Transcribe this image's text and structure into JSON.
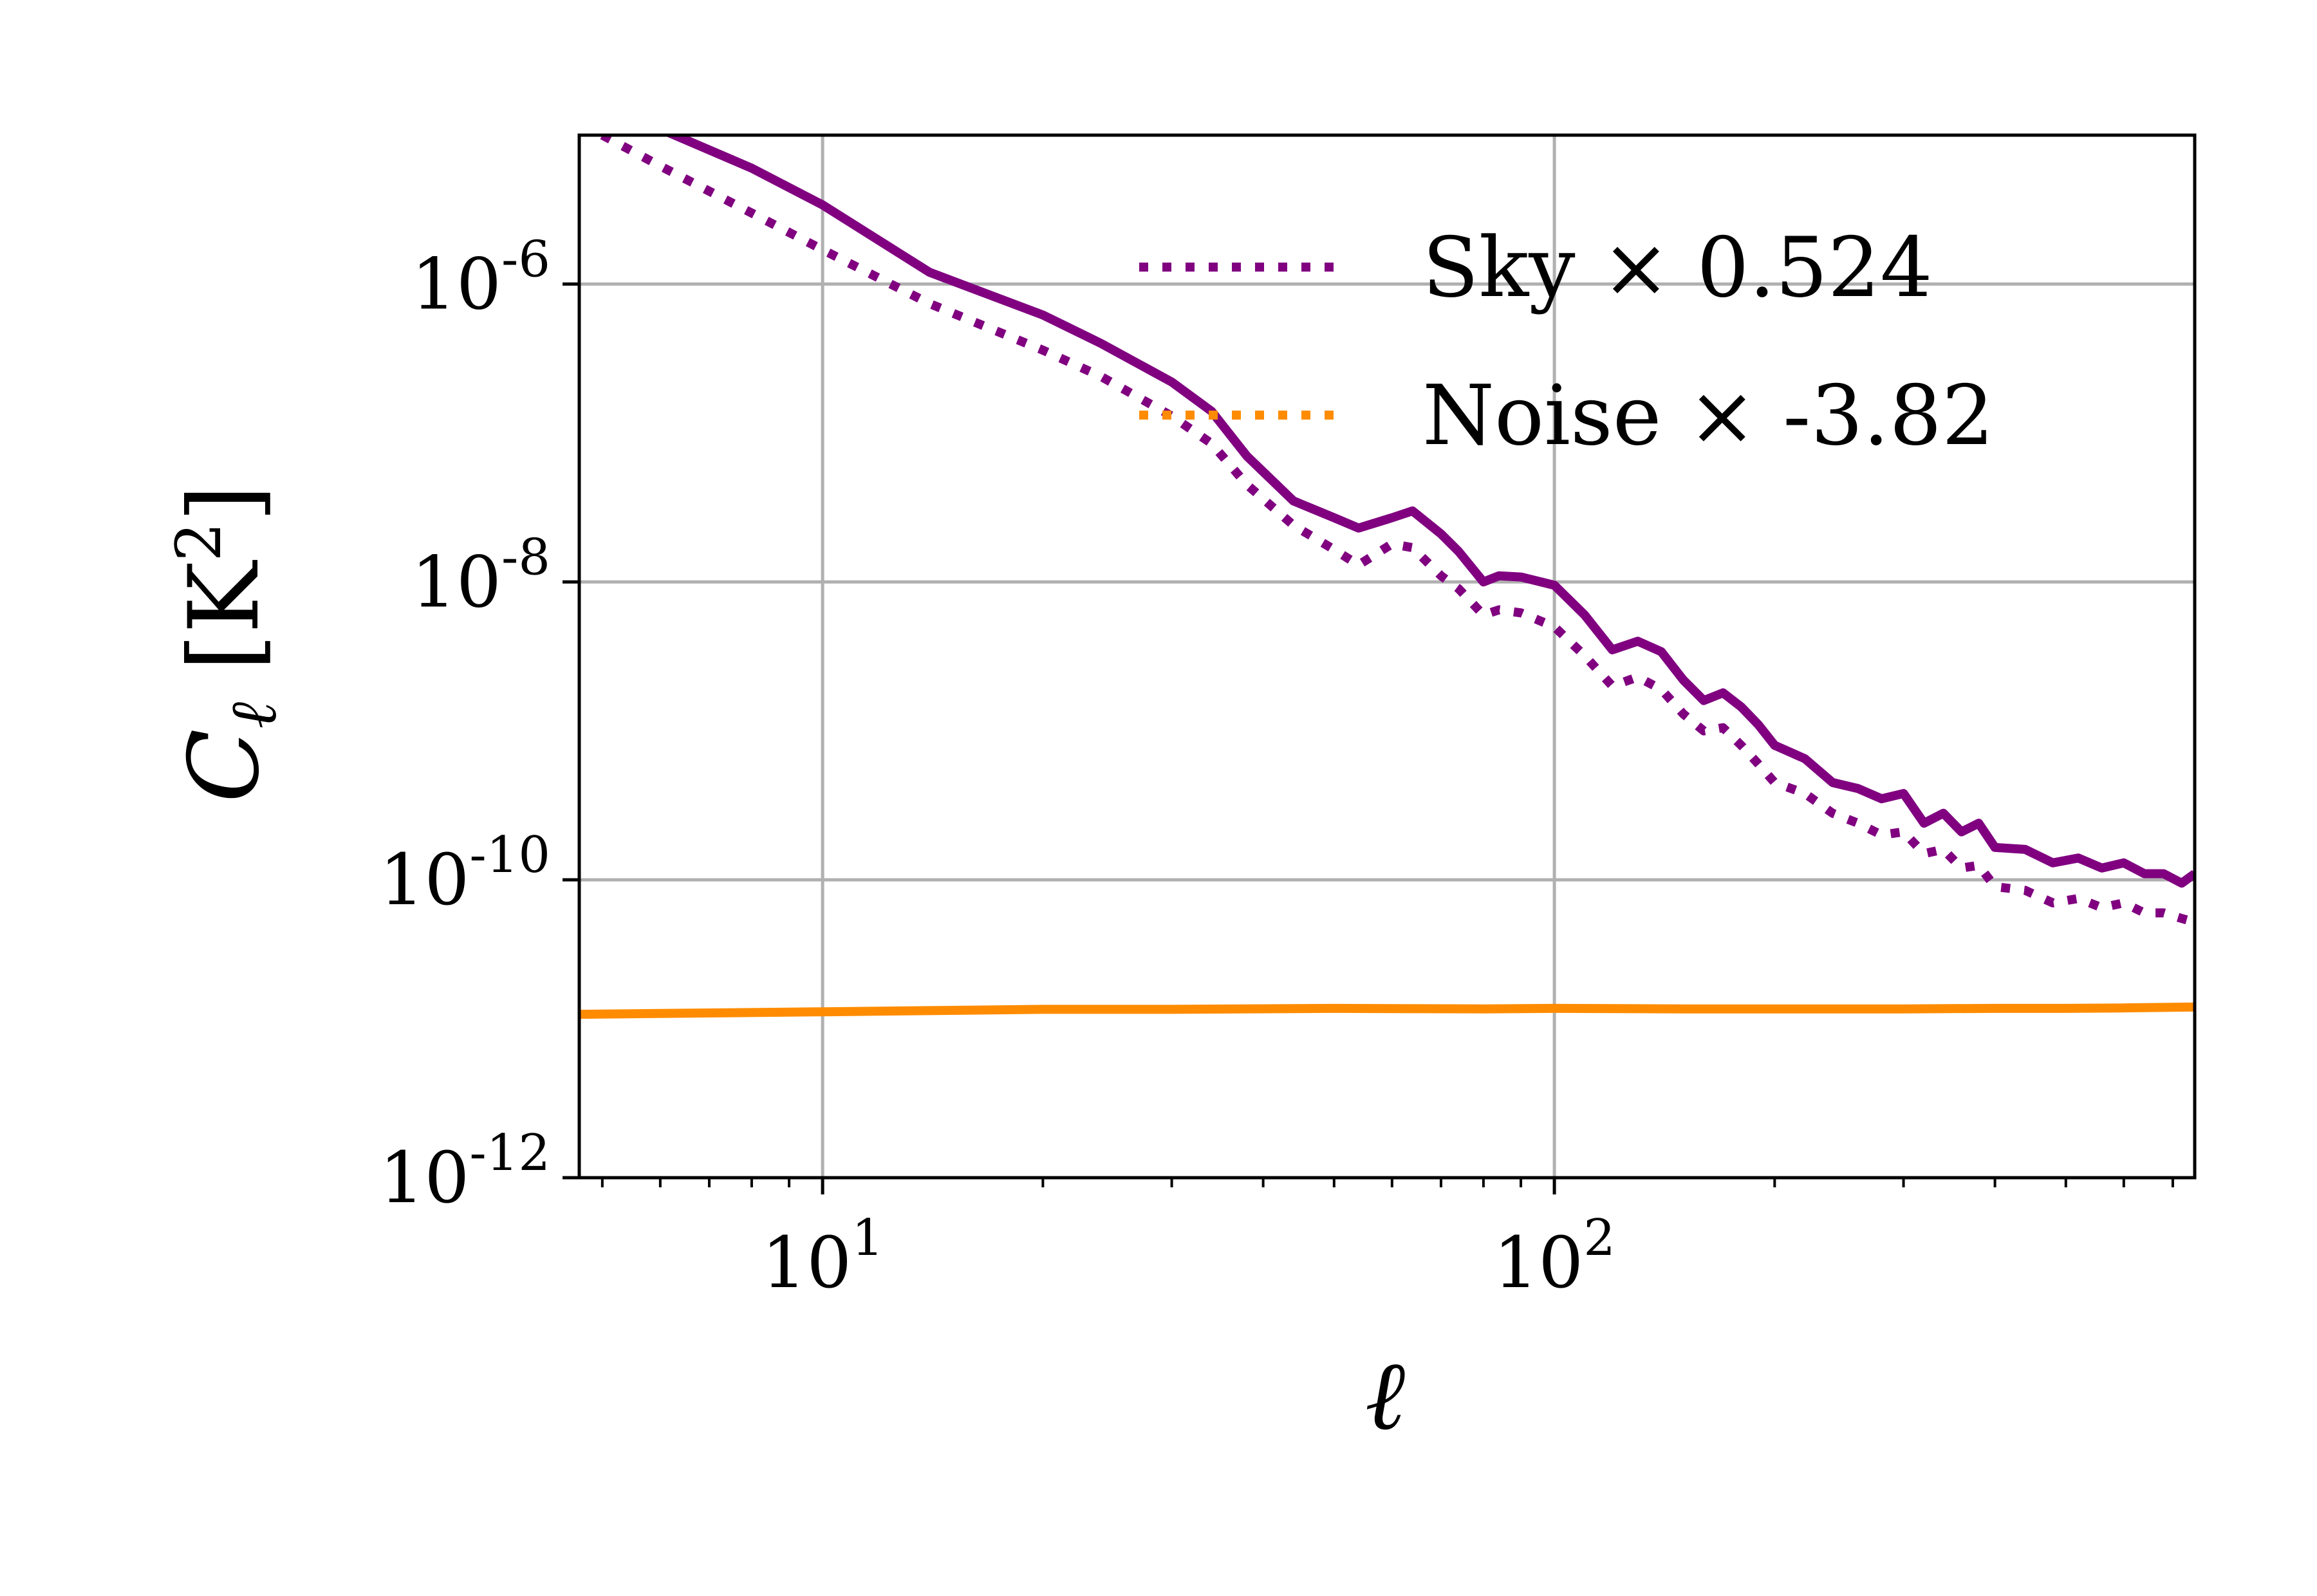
{
  "chart_data": {
    "type": "line",
    "xscale": "log",
    "yscale": "log",
    "xlim": [
      4.65,
      750
    ],
    "ylim": [
      1e-12,
      1e-05
    ],
    "xlabel": "ℓ",
    "ylabel": "C_ℓ [K²]",
    "ylabel_symbol": "C",
    "ylabel_subscript": "ℓ",
    "ylabel_unit_base": "K",
    "ylabel_unit_exp": "2",
    "ylabel_unit_open": "[",
    "ylabel_unit_close": "]",
    "grid": true,
    "legend_position": "top-right",
    "xticks": [
      {
        "value": 10,
        "base": "10",
        "exp": "1"
      },
      {
        "value": 100,
        "base": "10",
        "exp": "2"
      }
    ],
    "yticks": [
      {
        "value": 1e-06,
        "base": "10",
        "exp": "-6"
      },
      {
        "value": 1e-08,
        "base": "10",
        "exp": "-8"
      },
      {
        "value": 1e-10,
        "base": "10",
        "exp": "-10"
      },
      {
        "value": 1e-12,
        "base": "10",
        "exp": "-12"
      }
    ],
    "legend": [
      {
        "label": "Sky × 0.524",
        "color": "#800080",
        "style": "dotted"
      },
      {
        "label": "Noise × -3.82",
        "color": "#ff8c00",
        "style": "dotted"
      }
    ],
    "series": [
      {
        "name": "Sky",
        "color": "#800080",
        "style": "solid",
        "x": [
          5,
          6,
          8,
          10,
          14,
          20,
          24,
          30,
          34,
          38,
          44,
          50,
          54,
          60,
          64,
          70,
          74,
          80,
          84,
          90,
          100,
          110,
          120,
          130,
          140,
          150,
          160,
          170,
          180,
          190,
          200,
          220,
          240,
          260,
          280,
          300,
          320,
          340,
          360,
          380,
          400,
          440,
          480,
          520,
          560,
          600,
          640,
          680,
          720,
          750
        ],
        "y": [
          1.6e-05,
          1.1e-05,
          6e-06,
          3.4e-06,
          1.2e-06,
          6.2e-07,
          4e-07,
          2.2e-07,
          1.4e-07,
          7e-08,
          3.5e-08,
          2.7e-08,
          2.3e-08,
          2.7e-08,
          3e-08,
          2.1e-08,
          1.6e-08,
          1e-08,
          1.1e-08,
          1.08e-08,
          9.5e-09,
          6e-09,
          3.5e-09,
          4e-09,
          3.4e-09,
          2.2e-09,
          1.6e-09,
          1.8e-09,
          1.45e-09,
          1.1e-09,
          8e-10,
          6.5e-10,
          4.5e-10,
          4.1e-10,
          3.5e-10,
          3.8e-10,
          2.4e-10,
          2.8e-10,
          2.1e-10,
          2.4e-10,
          1.65e-10,
          1.6e-10,
          1.3e-10,
          1.4e-10,
          1.2e-10,
          1.3e-10,
          1.1e-10,
          1.1e-10,
          9.5e-11,
          1.1e-10
        ]
      },
      {
        "name": "Sky × 0.524",
        "color": "#800080",
        "style": "dotted",
        "x": [
          5,
          6,
          8,
          10,
          14,
          20,
          24,
          30,
          34,
          38,
          44,
          50,
          54,
          60,
          64,
          70,
          74,
          80,
          84,
          90,
          100,
          110,
          120,
          130,
          140,
          150,
          160,
          170,
          180,
          190,
          200,
          220,
          240,
          260,
          280,
          300,
          320,
          340,
          360,
          380,
          400,
          440,
          480,
          520,
          560,
          600,
          640,
          680,
          720,
          750
        ],
        "y": [
          1e-05,
          6.2e-06,
          3e-06,
          1.7e-06,
          7.4e-07,
          3.6e-07,
          2.4e-07,
          1.3e-07,
          8.5e-08,
          4.5e-08,
          2.4e-08,
          1.65e-08,
          1.3e-08,
          1.8e-08,
          1.7e-08,
          1.1e-08,
          9e-09,
          6e-09,
          6.5e-09,
          6.2e-09,
          5e-09,
          3.2e-09,
          2e-09,
          2.3e-09,
          1.9e-09,
          1.3e-09,
          1e-09,
          1.05e-09,
          8e-10,
          6e-10,
          4.5e-10,
          3.8e-10,
          2.8e-10,
          2.4e-10,
          2e-10,
          2.1e-10,
          1.5e-10,
          1.6e-10,
          1.2e-10,
          1.25e-10,
          9e-11,
          8.5e-11,
          7e-11,
          7.5e-11,
          6.5e-11,
          7e-11,
          6e-11,
          6e-11,
          5.5e-11,
          5.2e-11
        ]
      },
      {
        "name": "Noise",
        "color": "#ff8c00",
        "style": "solid",
        "x": [
          4.65,
          10,
          20,
          30,
          50,
          80,
          100,
          150,
          200,
          300,
          400,
          500,
          600,
          750
        ],
        "y": [
          1.25e-11,
          1.3e-11,
          1.35e-11,
          1.35e-11,
          1.37e-11,
          1.36e-11,
          1.37e-11,
          1.36e-11,
          1.36e-11,
          1.36e-11,
          1.37e-11,
          1.37e-11,
          1.38e-11,
          1.4e-11
        ]
      }
    ]
  }
}
